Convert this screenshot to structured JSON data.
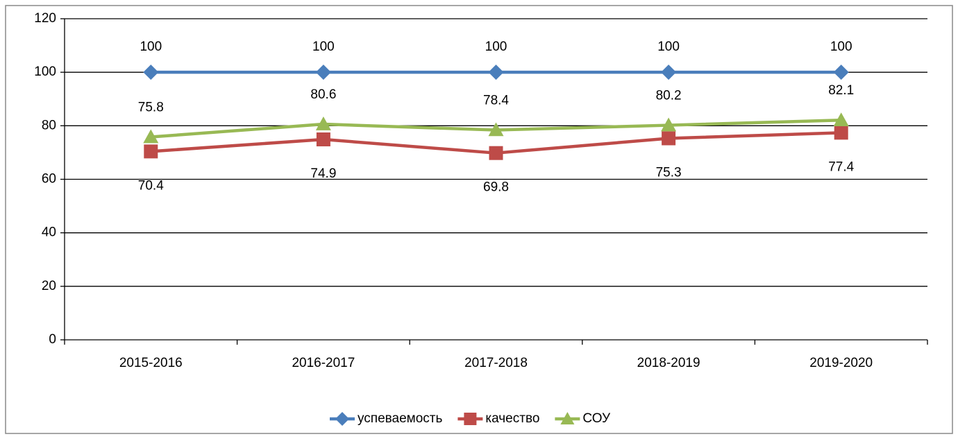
{
  "chart_data": {
    "type": "line",
    "categories": [
      "2015-2016",
      "2016-2017",
      "2017-2018",
      "2018-2019",
      "2019-2020"
    ],
    "series": [
      {
        "name": "успеваемость",
        "color": "#4a7ebb",
        "marker": "diamond",
        "values": [
          100,
          100,
          100,
          100,
          100
        ]
      },
      {
        "name": "качество",
        "color": "#be4b48",
        "marker": "square",
        "values": [
          70.4,
          74.9,
          69.8,
          75.3,
          77.4
        ]
      },
      {
        "name": "СОУ",
        "color": "#98b954",
        "marker": "triangle",
        "values": [
          75.8,
          80.6,
          78.4,
          80.2,
          82.1
        ]
      }
    ],
    "ylim": [
      0,
      120
    ],
    "yticks": [
      0,
      20,
      40,
      60,
      80,
      100,
      120
    ],
    "grid": true,
    "legend": "bottom"
  }
}
